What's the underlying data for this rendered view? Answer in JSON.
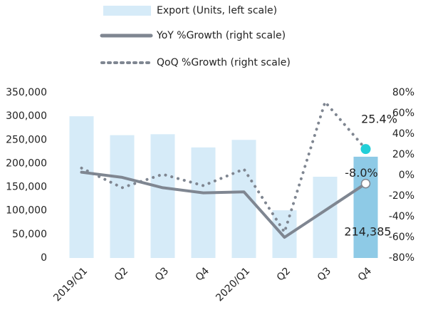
{
  "chart_data": {
    "type": "bar_line",
    "categories": [
      "2019/Q1",
      "Q2",
      "Q3",
      "Q4",
      "2020/Q1",
      "Q2",
      "Q3",
      "Q4"
    ],
    "series": [
      {
        "name": "Export (Units, left scale)",
        "type": "bar",
        "color": "#d6ebf8",
        "colors": [
          "#d6ebf8",
          "#d6ebf8",
          "#d6ebf8",
          "#d6ebf8",
          "#d6ebf8",
          "#d6ebf8",
          "#d6ebf8",
          "#8ecae6"
        ],
        "values": [
          300000,
          260000,
          262000,
          234000,
          250000,
          101000,
          172000,
          214385
        ],
        "value_labels": [
          null,
          null,
          null,
          null,
          null,
          null,
          null,
          "214,385"
        ]
      },
      {
        "name": "YoY %Growth (right scale)",
        "type": "line",
        "axis": "y2",
        "color": "#7f8691",
        "values": [
          3,
          -2,
          -12,
          -17,
          -16,
          -60,
          -34,
          -8.0
        ],
        "value_labels": [
          null,
          null,
          null,
          null,
          null,
          null,
          null,
          "-8.0%"
        ]
      },
      {
        "name": "QoQ %Growth (right scale)",
        "type": "dotted",
        "axis": "y2",
        "color": "#7f8691",
        "values": [
          7,
          -12,
          1,
          -10,
          6,
          -55,
          71,
          25.4
        ],
        "value_labels": [
          null,
          null,
          null,
          null,
          null,
          null,
          null,
          "25.4%"
        ]
      }
    ],
    "ylim": [
      0,
      350000
    ],
    "yticks": [
      0,
      {
        "value": 50000,
        "label": "50,000"
      },
      {
        "value": 100000,
        "label": "100,000"
      },
      {
        "value": 150000,
        "label": "150,000"
      },
      {
        "value": 200000,
        "label": "200,000"
      },
      {
        "value": 250000,
        "label": "250,000"
      },
      {
        "value": 300000,
        "label": "300,000"
      },
      {
        "value": 350000,
        "label": "350,000"
      }
    ],
    "y2lim": [
      -80,
      80
    ],
    "y2ticks": [
      {
        "value": -80,
        "label": "-80%"
      },
      {
        "value": -60,
        "label": "-60%"
      },
      {
        "value": -40,
        "label": "-40%"
      },
      {
        "value": -20,
        "label": "-20%"
      },
      {
        "value": 0,
        "label": "0%"
      },
      {
        "value": 20,
        "label": "20%"
      },
      {
        "value": 40,
        "label": "40%"
      },
      {
        "value": 60,
        "label": "60%"
      },
      {
        "value": 80,
        "label": "80%"
      }
    ]
  }
}
